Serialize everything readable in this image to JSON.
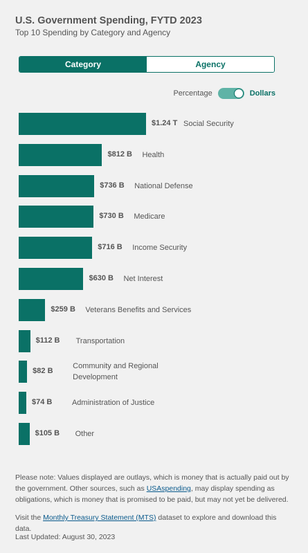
{
  "header": {
    "title": "U.S. Government Spending, FYTD 2023",
    "subtitle": "Top 10 Spending by Category and Agency"
  },
  "view_toggle": {
    "options": [
      "Category",
      "Agency"
    ],
    "selected": "Category"
  },
  "unit_switch": {
    "left_label": "Percentage",
    "right_label": "Dollars",
    "selected": "Dollars"
  },
  "colors": {
    "accent": "#0a7166",
    "switch_track": "#5fb3a6",
    "link": "#0a5a8c"
  },
  "chart_data": {
    "type": "bar",
    "orientation": "horizontal",
    "unit": "billions of dollars",
    "categories": [
      "Social Security",
      "Health",
      "National Defense",
      "Medicare",
      "Income Security",
      "Net Interest",
      "Veterans Benefits and Services",
      "Transportation",
      "Community and Regional Development",
      "Administration of Justice",
      "Other"
    ],
    "values": [
      1240,
      812,
      736,
      730,
      716,
      630,
      259,
      112,
      82,
      74,
      105
    ],
    "value_labels": [
      "$1.24 T",
      "$812 B",
      "$736 B",
      "$730 B",
      "$716 B",
      "$630 B",
      "$259 B",
      "$112 B",
      "$82 B",
      "$74 B",
      "$105 B"
    ]
  },
  "footer": {
    "note_prefix": "Please note: Values displayed are outlays, which is money that is actually paid out by the government. Other sources, such as ",
    "note_link": "USAspending",
    "note_suffix": ", may display spending as obligations, which is money that is promised to be paid, but may not yet be delivered.",
    "visit_prefix": "Visit the ",
    "visit_link": "Monthly Treasury Statement (MTS)",
    "visit_suffix": " dataset to explore and download this data.",
    "last_updated": "Last Updated: August 30, 2023"
  }
}
